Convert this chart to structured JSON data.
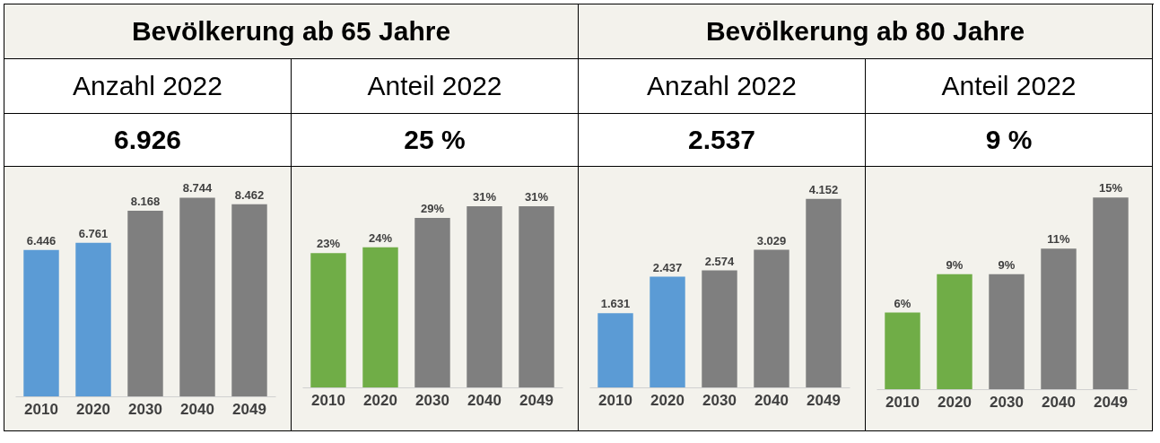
{
  "chart_data": [
    {
      "type": "other",
      "title": "Bevölkerung ab 65 Jahre"
    },
    {
      "type": "bar",
      "title": "Anzahl 2022",
      "subtitle": "6.926",
      "categories": [
        "2010",
        "2020",
        "2030",
        "2040",
        "2049"
      ],
      "values": [
        6446,
        6761,
        8168,
        8744,
        8462
      ],
      "value_labels": [
        "6.446",
        "6.761",
        "8.168",
        "8.744",
        "8.462"
      ],
      "colors": [
        "#5b9bd5",
        "#5b9bd5",
        "#7f7f7f",
        "#7f7f7f",
        "#7f7f7f"
      ]
    },
    {
      "type": "bar",
      "title": "Anteil 2022",
      "subtitle": "25 %",
      "categories": [
        "2010",
        "2020",
        "2030",
        "2040",
        "2049"
      ],
      "values": [
        23,
        24,
        29,
        31,
        31
      ],
      "value_labels": [
        "23%",
        "24%",
        "29%",
        "31%",
        "31%"
      ],
      "colors": [
        "#70ad47",
        "#70ad47",
        "#7f7f7f",
        "#7f7f7f",
        "#7f7f7f"
      ]
    },
    {
      "type": "other",
      "title": "Bevölkerung ab 80 Jahre"
    },
    {
      "type": "bar",
      "title": "Anzahl 2022",
      "subtitle": "2.537",
      "categories": [
        "2010",
        "2020",
        "2030",
        "2040",
        "2049"
      ],
      "values": [
        1631,
        2437,
        2574,
        3029,
        4152
      ],
      "value_labels": [
        "1.631",
        "2.437",
        "2.574",
        "3.029",
        "4.152"
      ],
      "colors": [
        "#5b9bd5",
        "#5b9bd5",
        "#7f7f7f",
        "#7f7f7f",
        "#7f7f7f"
      ]
    },
    {
      "type": "bar",
      "title": "Anteil 2022",
      "subtitle": "9 %",
      "categories": [
        "2010",
        "2020",
        "2030",
        "2040",
        "2049"
      ],
      "values": [
        6,
        9,
        9,
        11,
        15
      ],
      "value_labels": [
        "6%",
        "9%",
        "9%",
        "11%",
        "15%"
      ],
      "colors": [
        "#70ad47",
        "#70ad47",
        "#7f7f7f",
        "#7f7f7f",
        "#7f7f7f"
      ]
    }
  ]
}
